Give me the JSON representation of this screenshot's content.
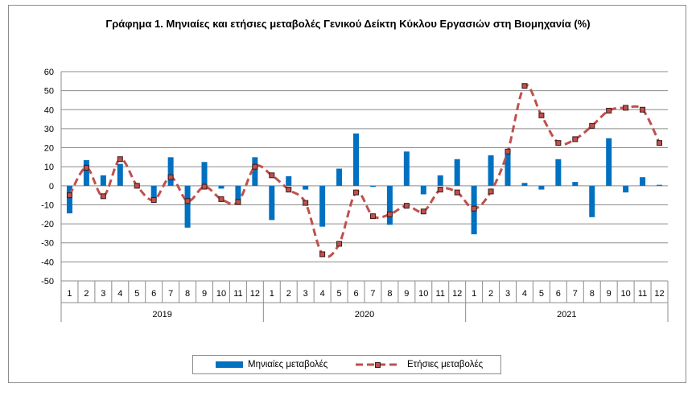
{
  "chart_data": {
    "type": "bar+line",
    "title": "Γράφημα 1. Μηνιαίες και ετήσιες μεταβολές  Γενικού Δείκτη Κύκλου Εργασιών στη Βιομηχανία (%)",
    "ylim": [
      -50,
      60
    ],
    "yticks": [
      -50,
      -40,
      -30,
      -20,
      -10,
      0,
      10,
      20,
      30,
      40,
      50,
      60
    ],
    "grid": true,
    "legend_position": "bottom",
    "years": [
      {
        "label": "2019",
        "months": [
          "1",
          "2",
          "3",
          "4",
          "5",
          "6",
          "7",
          "8",
          "9",
          "10",
          "11",
          "12"
        ]
      },
      {
        "label": "2020",
        "months": [
          "1",
          "2",
          "3",
          "4",
          "5",
          "6",
          "7",
          "8",
          "9",
          "10",
          "11",
          "12"
        ]
      },
      {
        "label": "2021",
        "months": [
          "1",
          "2",
          "3",
          "4",
          "5",
          "6",
          "7",
          "8",
          "9",
          "10",
          "11",
          "12"
        ]
      }
    ],
    "series": [
      {
        "name": "Μηνιαίες μεταβολές",
        "kind": "bar",
        "color": "#0070c0",
        "values": [
          -14.5,
          13.5,
          5.5,
          11.5,
          0.5,
          -6.5,
          15.0,
          -22.0,
          12.5,
          -1.5,
          -7.5,
          15.0,
          -18.0,
          5.0,
          -2.0,
          -21.5,
          9.0,
          27.5,
          -0.5,
          -20.5,
          18.0,
          -4.5,
          5.5,
          14.0,
          -25.5,
          16.0,
          18.0,
          1.5,
          -2.0,
          14.0,
          2.0,
          -16.5,
          25.0,
          -3.5,
          4.5,
          0.5
        ]
      },
      {
        "name": "Ετήσιες μεταβολές",
        "kind": "line",
        "color": "#c0504d",
        "values": [
          -5.0,
          9.5,
          -5.5,
          14.0,
          0.0,
          -7.5,
          4.5,
          -8.0,
          -0.5,
          -7.0,
          -8.5,
          10.0,
          5.5,
          -2.0,
          -9.0,
          -36.0,
          -30.5,
          -3.5,
          -16.0,
          -15.0,
          -10.5,
          -13.5,
          -2.0,
          -3.5,
          -12.0,
          -3.0,
          18.0,
          52.5,
          37.0,
          22.5,
          24.5,
          31.5,
          39.5,
          41.0,
          40.0,
          22.5
        ]
      }
    ]
  }
}
